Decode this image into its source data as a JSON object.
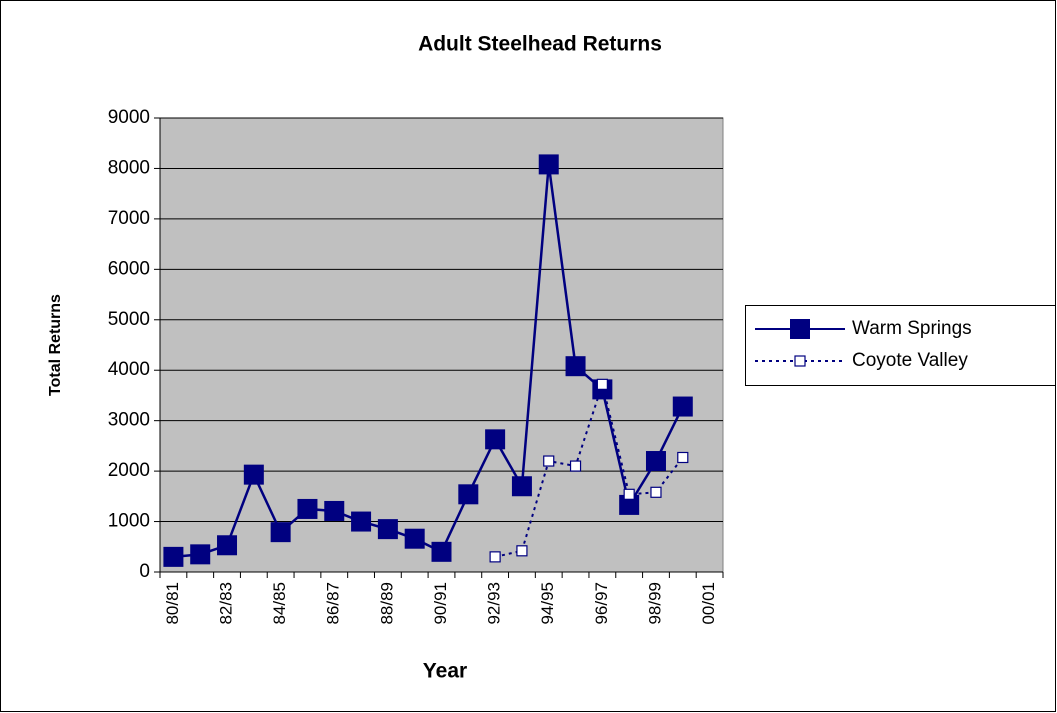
{
  "chart_data": {
    "type": "line",
    "title": "Adult Steelhead Returns",
    "x_label": "Year",
    "y_label": "Total Returns",
    "categories": [
      "80/81",
      null,
      "82/83",
      null,
      "84/85",
      null,
      "86/87",
      null,
      "88/89",
      null,
      "90/91",
      null,
      "92/93",
      null,
      "94/95",
      null,
      "96/97",
      null,
      "98/99",
      null,
      "00/01"
    ],
    "series": [
      {
        "name": "Warm Springs",
        "color": "#000080",
        "marker": "filled-square",
        "line": "solid",
        "values": [
          300,
          350,
          530,
          1930,
          790,
          1250,
          1210,
          1000,
          850,
          660,
          400,
          1540,
          2630,
          1700,
          8080,
          4080,
          3620,
          1330,
          2200,
          3280,
          null
        ]
      },
      {
        "name": "Coyote Valley",
        "color": "#000080",
        "marker": "open-square",
        "line": "dotted",
        "values": [
          null,
          null,
          null,
          null,
          null,
          null,
          null,
          null,
          null,
          null,
          null,
          null,
          300,
          420,
          2200,
          2100,
          3720,
          1540,
          1580,
          2270,
          null
        ]
      }
    ],
    "ylim": [
      0,
      9000
    ],
    "yticks": [
      0,
      1000,
      2000,
      3000,
      4000,
      5000,
      6000,
      7000,
      8000,
      9000
    ],
    "grid": true,
    "legend": "right",
    "plot_background": "#c0c0c0"
  }
}
